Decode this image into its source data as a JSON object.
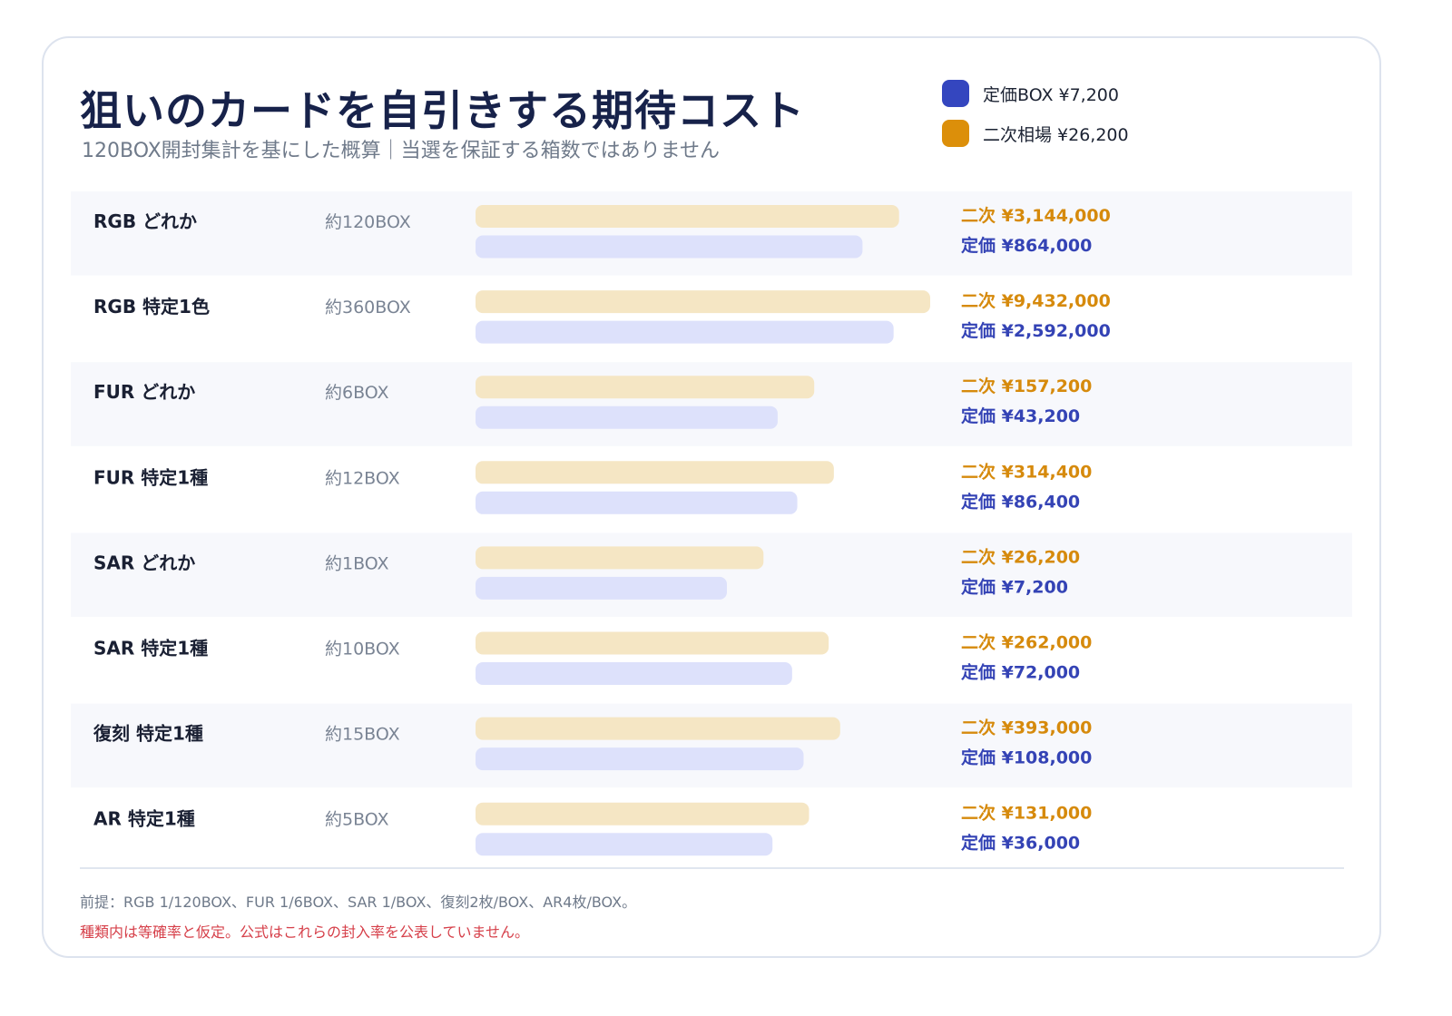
{
  "header": {
    "title": "狙いのカードを自引きする期待コスト",
    "subtitle": "120BOX開封集計を基にした概算｜当選を保証する箱数ではありません"
  },
  "legend": {
    "items": [
      {
        "label": "定価BOX ¥7,200",
        "color": "#3446bf"
      },
      {
        "label": "二次相場 ¥26,200",
        "color": "#dc8f0a"
      }
    ]
  },
  "colors": {
    "secondary_bar": "#f5e6c4",
    "retail_bar": "#dde1fb",
    "secondary_text": "#d68a0c",
    "retail_text": "#3443b5",
    "row_stripe": "#f7f8fc"
  },
  "chart_data": {
    "type": "bar",
    "orientation": "horizontal",
    "scale": "log",
    "categories": [
      "RGB どれか",
      "RGB 特定1色",
      "FUR どれか",
      "FUR 特定1種",
      "SAR どれか",
      "SAR 特定1種",
      "復刻 特定1種",
      "AR 特定1種"
    ],
    "box_counts": [
      "約120BOX",
      "約360BOX",
      "約6BOX",
      "約12BOX",
      "約1BOX",
      "約10BOX",
      "約15BOX",
      "約5BOX"
    ],
    "series": [
      {
        "name": "二次相場 ¥26,200",
        "values": [
          3144000,
          9432000,
          157200,
          314400,
          26200,
          262000,
          393000,
          131000
        ],
        "labels": [
          "二次 ¥3,144,000",
          "二次 ¥9,432,000",
          "二次 ¥157,200",
          "二次 ¥314,400",
          "二次 ¥26,200",
          "二次 ¥262,000",
          "二次 ¥393,000",
          "二次 ¥131,000"
        ]
      },
      {
        "name": "定価BOX ¥7,200",
        "values": [
          864000,
          2592000,
          43200,
          86400,
          7200,
          72000,
          108000,
          36000
        ],
        "labels": [
          "定価 ¥864,000",
          "定価 ¥2,592,000",
          "定価 ¥43,200",
          "定価 ¥86,400",
          "定価 ¥7,200",
          "定価 ¥72,000",
          "定価 ¥108,000",
          "定価 ¥36,000"
        ]
      }
    ]
  },
  "footer": {
    "note1": "前提：RGB 1/120BOX、FUR 1/6BOX、SAR 1/BOX、復刻2枚/BOX、AR4枚/BOX。",
    "note2": "種類内は等確率と仮定。公式はこれらの封入率を公表していません。"
  }
}
